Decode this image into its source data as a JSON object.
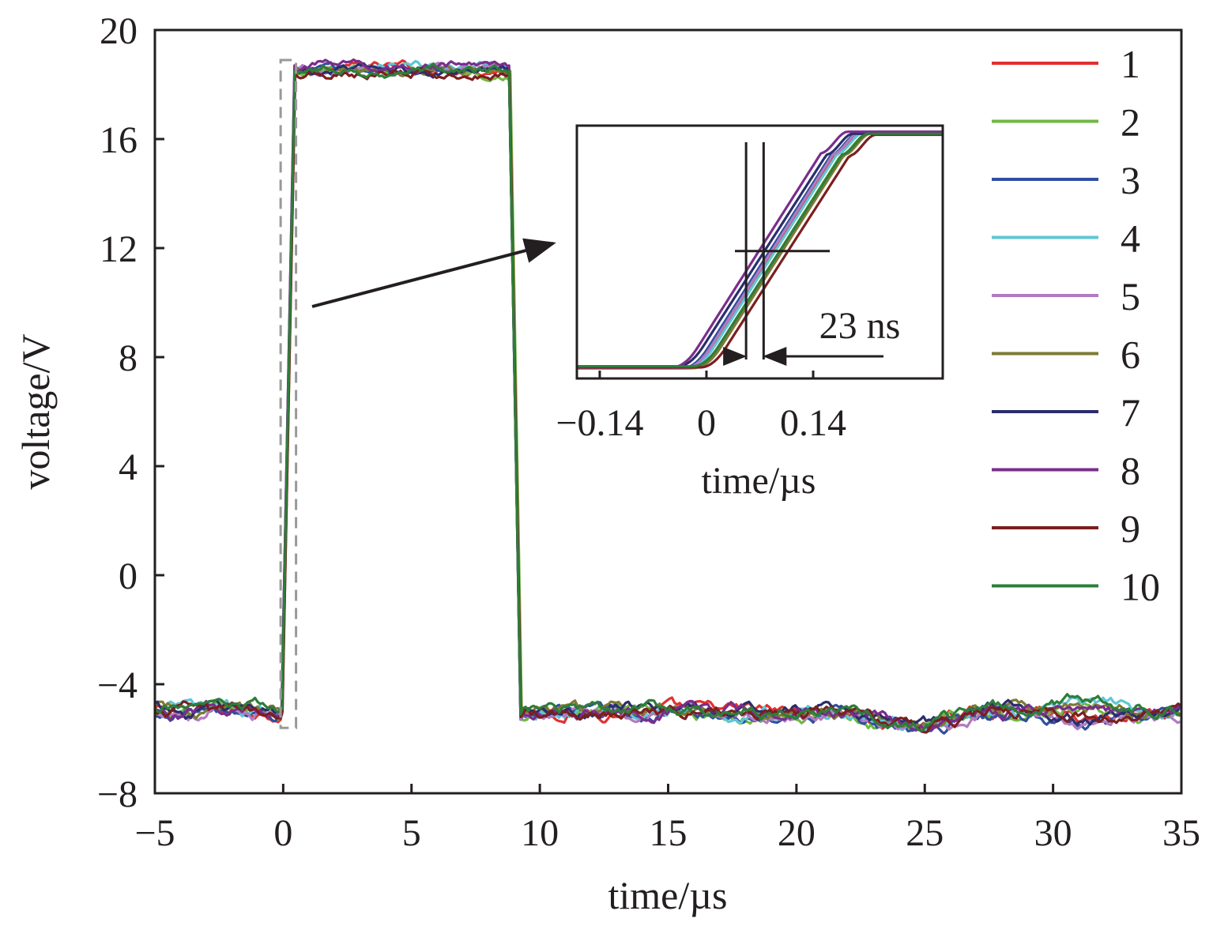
{
  "chart_data": {
    "type": "line",
    "xlabel": "time/µs",
    "ylabel": "voltage/V",
    "xlim": [
      -5,
      35
    ],
    "ylim": [
      -8,
      20
    ],
    "xticks": [
      -5,
      0,
      5,
      10,
      15,
      20,
      25,
      30,
      35
    ],
    "xtick_labels": [
      "−5",
      "0",
      "5",
      "10",
      "15",
      "20",
      "25",
      "30",
      "35"
    ],
    "yticks": [
      -8,
      -4,
      0,
      4,
      8,
      12,
      16,
      20
    ],
    "ytick_labels": [
      "−8",
      "−4",
      "0",
      "4",
      "8",
      "12",
      "16",
      "20"
    ],
    "legend_position": "right",
    "series": [
      {
        "name": "1",
        "color": "#e0312f",
        "low": -5.0,
        "high": 18.6,
        "rise_start": -0.05,
        "rise_end": 0.45,
        "fall_start": 8.8,
        "fall_end": 9.25
      },
      {
        "name": "2",
        "color": "#71b843",
        "low": -5.1,
        "high": 18.5,
        "rise_start": -0.04,
        "rise_end": 0.46,
        "fall_start": 8.85,
        "fall_end": 9.3
      },
      {
        "name": "3",
        "color": "#2f4fa0",
        "low": -5.1,
        "high": 18.5,
        "rise_start": -0.05,
        "rise_end": 0.45,
        "fall_start": 8.8,
        "fall_end": 9.25
      },
      {
        "name": "4",
        "color": "#5fc6d6",
        "low": -5.0,
        "high": 18.6,
        "rise_start": -0.04,
        "rise_end": 0.46,
        "fall_start": 8.8,
        "fall_end": 9.25
      },
      {
        "name": "5",
        "color": "#b07cc0",
        "low": -5.1,
        "high": 18.6,
        "rise_start": -0.05,
        "rise_end": 0.45,
        "fall_start": 8.8,
        "fall_end": 9.25
      },
      {
        "name": "6",
        "color": "#7d7a35",
        "low": -5.0,
        "high": 18.5,
        "rise_start": -0.03,
        "rise_end": 0.47,
        "fall_start": 8.82,
        "fall_end": 9.27
      },
      {
        "name": "7",
        "color": "#2b2e6b",
        "low": -4.9,
        "high": 18.5,
        "rise_start": -0.06,
        "rise_end": 0.44,
        "fall_start": 8.8,
        "fall_end": 9.25
      },
      {
        "name": "8",
        "color": "#7a2d8c",
        "low": -5.0,
        "high": 18.7,
        "rise_start": -0.06,
        "rise_end": 0.44,
        "fall_start": 8.8,
        "fall_end": 9.25
      },
      {
        "name": "9",
        "color": "#7a1f1f",
        "low": -5.0,
        "high": 18.4,
        "rise_start": -0.03,
        "rise_end": 0.47,
        "fall_start": 8.82,
        "fall_end": 9.27
      },
      {
        "name": "10",
        "color": "#2e7d3a",
        "low": -4.9,
        "high": 18.5,
        "rise_start": -0.05,
        "rise_end": 0.45,
        "fall_start": 8.8,
        "fall_end": 9.25
      }
    ],
    "zoom_region": {
      "x": [
        -0.1,
        0.5
      ],
      "y": [
        -5.6,
        18.9
      ]
    },
    "inset": {
      "xlabel": "time/µs",
      "xlim": [
        -0.17,
        0.31
      ],
      "xticks": [
        -0.14,
        0,
        0.14
      ],
      "xtick_labels": [
        "−0.14",
        "0",
        "0.14"
      ],
      "annotation": "23 ns",
      "marker_times": [
        0.052,
        0.075
      ],
      "marker_level": 6.7,
      "rise_offsets": [
        0.004,
        0.011,
        -0.002,
        0.006,
        0.001,
        0.015,
        -0.008,
        -0.015,
        0.022,
        0.012
      ]
    }
  }
}
